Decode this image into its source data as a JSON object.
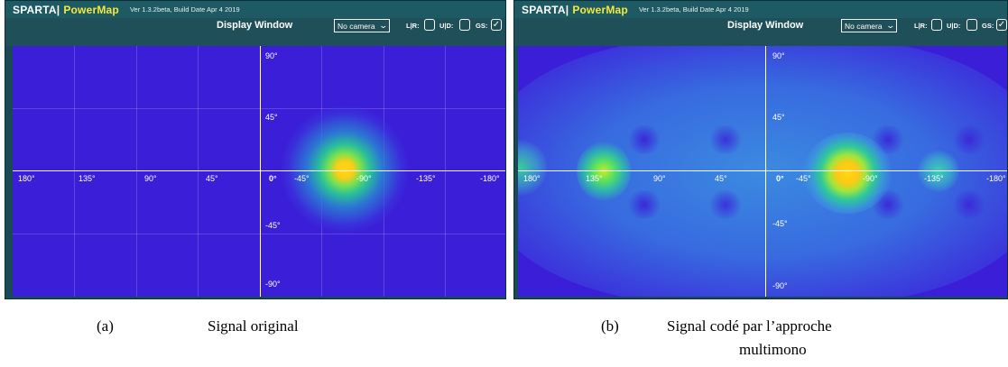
{
  "panels": [
    {
      "brand": "SPARTA|",
      "product": "PowerMap",
      "version": "Ver 1.3.2beta, Build Date Apr  4 2019",
      "display_window": "Display Window",
      "camera": "No camera",
      "lr_label": "L|R:",
      "ud_label": "U|D:",
      "gs_label": "GS:",
      "gs_checked": true,
      "x_labels": [
        "180°",
        "135°",
        "90°",
        "45°",
        "0°",
        "-45°",
        "-90°",
        "-135°",
        "-180°"
      ],
      "y_labels": [
        "90°",
        "45°",
        "-45°",
        "-90°"
      ]
    },
    {
      "brand": "SPARTA|",
      "product": "PowerMap",
      "version": "Ver 1.3.2beta, Build Date Apr  4 2019",
      "display_window": "Display Window",
      "camera": "No camera",
      "lr_label": "L|R:",
      "ud_label": "U|D:",
      "gs_label": "GS:",
      "gs_checked": true,
      "x_labels": [
        "180°",
        "135°",
        "90°",
        "45°",
        "0°",
        "-45°",
        "-90°",
        "-135°",
        "-180°"
      ],
      "y_labels": [
        "90°",
        "45°",
        "-45°",
        "-90°"
      ]
    }
  ],
  "captions": [
    {
      "letter": "(a)",
      "text": "Signal original"
    },
    {
      "letter": "(b)",
      "text": "Signal codé par l’approche",
      "text2": "multimono"
    }
  ],
  "colors": {
    "background_blue": "#3a1ed8",
    "hot_yellow": "#ffd21a",
    "green": "#2ad68a",
    "brand_yellow": "#f6e93a"
  }
}
